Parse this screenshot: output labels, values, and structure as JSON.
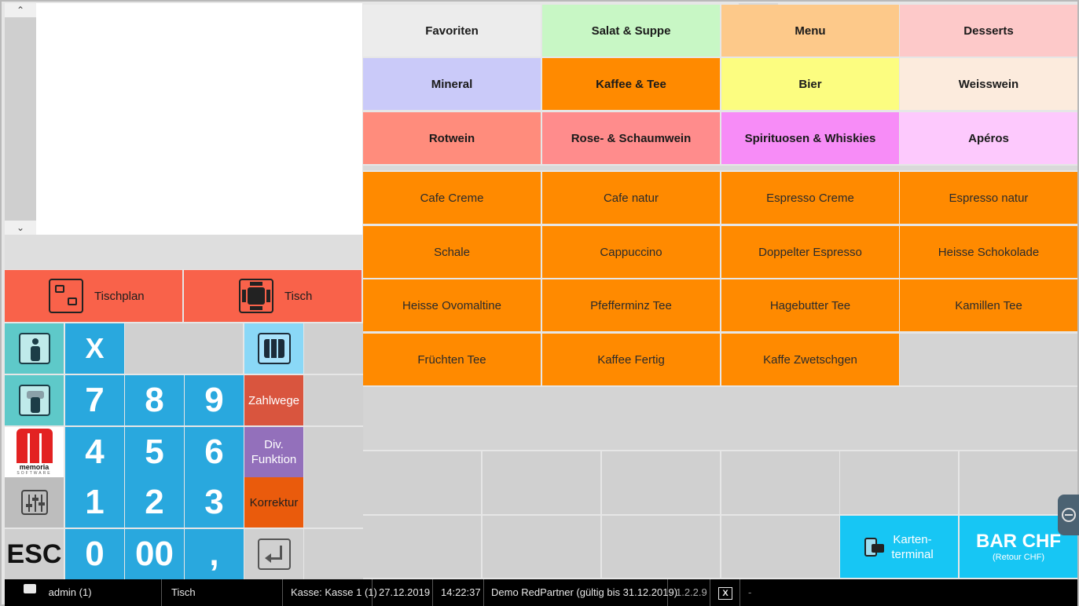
{
  "scroll": {
    "up_glyph": "⌃",
    "down_glyph": "⌄"
  },
  "table": {
    "plan_label": "Tischplan",
    "tisch_label": "Tisch"
  },
  "keypad": {
    "x": "X",
    "seven": "7",
    "eight": "8",
    "nine": "9",
    "four": "4",
    "five": "5",
    "six": "6",
    "one": "1",
    "two": "2",
    "three": "3",
    "esc": "ESC",
    "zero": "0",
    "double_zero": "00",
    "comma": ",",
    "zahlwege": "Zahlwege",
    "div_line1": "Div.",
    "div_line2": "Funktion",
    "korrektur": "Korrektur"
  },
  "logo": {
    "name": "memoria",
    "sub": "SOFTWARE"
  },
  "categories": [
    {
      "label": "Favoriten",
      "color": "#ececec"
    },
    {
      "label": "Salat & Suppe",
      "color": "#c8f7c5"
    },
    {
      "label": "Menu",
      "color": "#fdc98a"
    },
    {
      "label": "Desserts",
      "color": "#fdc9c9"
    },
    {
      "label": "Mineral",
      "color": "#cacaf9"
    },
    {
      "label": "Kaffee & Tee",
      "color": "#ff8a00"
    },
    {
      "label": "Bier",
      "color": "#fcfd80"
    },
    {
      "label": "Weisswein",
      "color": "#fcebdd"
    },
    {
      "label": "Rotwein",
      "color": "#ff8c7c"
    },
    {
      "label": "Rose- & Schaumwein",
      "color": "#ff8c8c"
    },
    {
      "label": "Spirituosen & Whiskies",
      "color": "#f78cf7"
    },
    {
      "label": "Apéros",
      "color": "#fdc9fd"
    }
  ],
  "products": [
    "Cafe Creme",
    "Cafe natur",
    "Espresso Creme",
    "Espresso natur",
    "Schale",
    "Cappuccino",
    "Doppelter Espresso",
    "Heisse Schokolade",
    "Heisse Ovomaltine",
    "Pfefferminz Tee",
    "Hagebutter Tee",
    "Kamillen Tee",
    "Früchten Tee",
    "Kaffee Fertig",
    "Kaffe Zwetschgen"
  ],
  "payment": {
    "card_line1": "Karten-",
    "card_line2": "terminal",
    "cash_label": "BAR CHF",
    "cash_sub": "(Retour CHF)"
  },
  "status": {
    "user": "admin (1)",
    "table": "Tisch",
    "register": "Kasse: Kasse 1 (1)",
    "date": "27.12.2019",
    "time": "14:22:37",
    "license": "Demo RedPartner (gültig bis 31.12.2019)",
    "version": "1.2.2.9",
    "close_glyph": "X",
    "dash": "-"
  }
}
